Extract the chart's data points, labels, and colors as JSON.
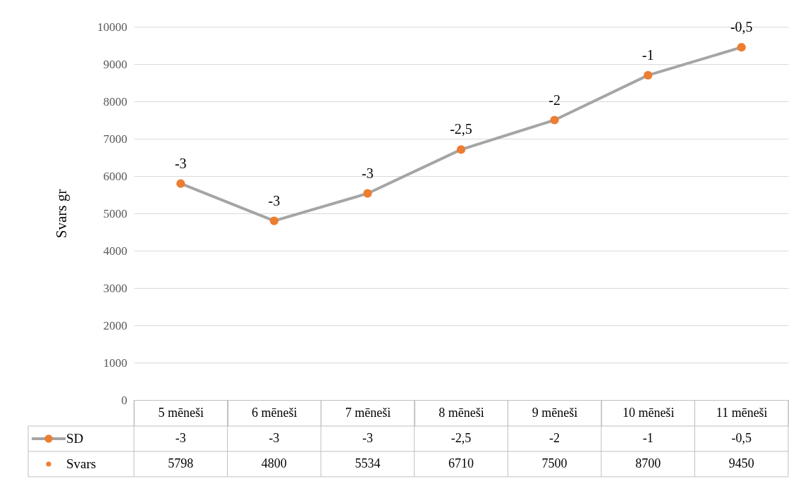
{
  "chart_data": {
    "type": "line",
    "ylabel": "Svars gr",
    "categories": [
      "5 mēneši",
      "6 mēneši",
      "7 mēneši",
      "8 mēneši",
      "9 mēneši",
      "10 mēneši",
      "11 mēneši"
    ],
    "series": [
      {
        "name": "Svars",
        "color": "#a5a5a5",
        "colors": [
          "#ed7d31",
          "#ed7d31",
          "#ed7d31",
          "#ed7d31",
          "#ed7d31",
          "#ed7d31",
          "#ed7d31"
        ],
        "values": [
          5798,
          4800,
          5534,
          6710,
          7500,
          8700,
          9450
        ]
      }
    ],
    "data_labels": true,
    "annotations": [
      {
        "text": "-3",
        "x": "5 mēneši",
        "y": 5798
      },
      {
        "text": "-3",
        "x": "6 mēneši",
        "y": 4800
      },
      {
        "text": "-3",
        "x": "7 mēneši",
        "y": 5534
      },
      {
        "text": "-2,5",
        "x": "8 mēneši",
        "y": 6710
      },
      {
        "text": "-2",
        "x": "9 mēneši",
        "y": 7500
      },
      {
        "text": "-1",
        "x": "10 mēneši",
        "y": 8700
      },
      {
        "text": "-0,5",
        "x": "11 mēneši",
        "y": 9450
      },
      "SD"
    ],
    "ylim": [
      0,
      10000
    ],
    "yticks": [
      0,
      1000,
      2000,
      3000,
      4000,
      5000,
      6000,
      7000,
      8000,
      9000,
      10000
    ],
    "grid": "y",
    "marker": "circle",
    "line_style": "solid",
    "legend": "bottom"
  }
}
